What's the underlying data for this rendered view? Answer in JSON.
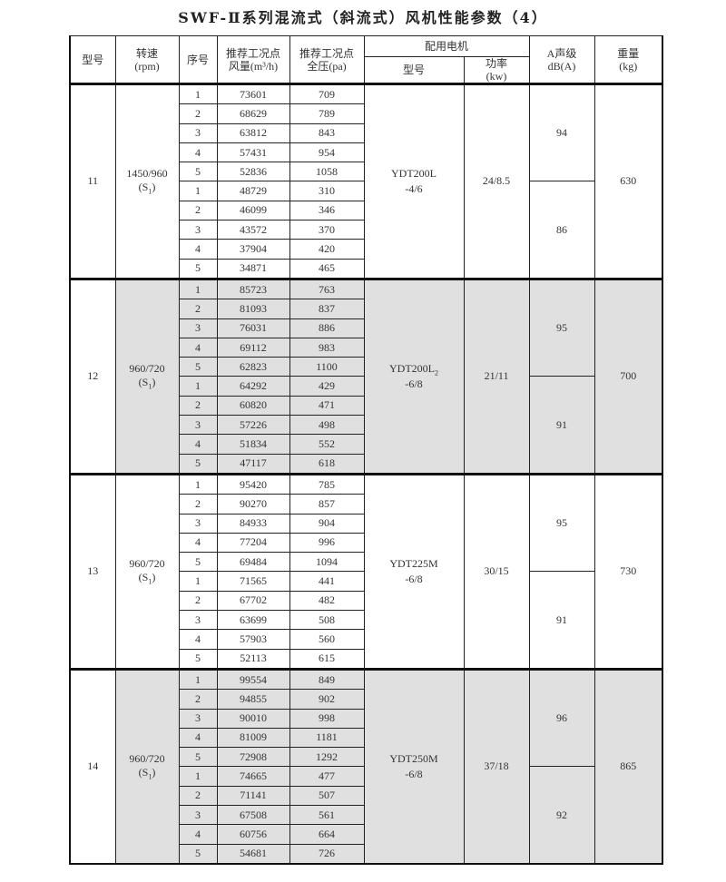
{
  "title": "SWF-Ⅱ系列混流式（斜流式）风机性能参数（4）",
  "headers": {
    "model": "型号",
    "speed": "转速",
    "speed_unit": "(rpm)",
    "seq": "序号",
    "flow": "推荐工况点",
    "flow_unit": "风量(m³/h)",
    "pressure": "推荐工况点",
    "pressure_unit": "全压(pa)",
    "motor": "配用电机",
    "motor_model": "型号",
    "power": "功率",
    "power_unit": "(kw)",
    "noise": "A声级",
    "noise_unit": "dB(A)",
    "weight": "重量",
    "weight_unit": "(kg)"
  },
  "shade_color": "#e0e0e0",
  "groups": [
    {
      "model": "11",
      "speed": "1450/960",
      "speed_sub": "(S",
      "speed_sub_idx": "1",
      "speed_close": ")",
      "shaded": false,
      "motor_model": "YDT200L",
      "motor_model_sub": "",
      "motor_suffix": "-4/6",
      "power": "24/8.5",
      "noise": [
        "94",
        "86"
      ],
      "weight": "630",
      "rows": [
        [
          "1",
          "73601",
          "709"
        ],
        [
          "2",
          "68629",
          "789"
        ],
        [
          "3",
          "63812",
          "843"
        ],
        [
          "4",
          "57431",
          "954"
        ],
        [
          "5",
          "52836",
          "1058"
        ],
        [
          "1",
          "48729",
          "310"
        ],
        [
          "2",
          "46099",
          "346"
        ],
        [
          "3",
          "43572",
          "370"
        ],
        [
          "4",
          "37904",
          "420"
        ],
        [
          "5",
          "34871",
          "465"
        ]
      ]
    },
    {
      "model": "12",
      "speed": "960/720",
      "speed_sub": "(S",
      "speed_sub_idx": "1",
      "speed_close": ")",
      "shaded": true,
      "motor_model": "YDT200L",
      "motor_model_sub": "2",
      "motor_suffix": "-6/8",
      "power": "21/11",
      "noise": [
        "95",
        "91"
      ],
      "weight": "700",
      "rows": [
        [
          "1",
          "85723",
          "763"
        ],
        [
          "2",
          "81093",
          "837"
        ],
        [
          "3",
          "76031",
          "886"
        ],
        [
          "4",
          "69112",
          "983"
        ],
        [
          "5",
          "62823",
          "1100"
        ],
        [
          "1",
          "64292",
          "429"
        ],
        [
          "2",
          "60820",
          "471"
        ],
        [
          "3",
          "57226",
          "498"
        ],
        [
          "4",
          "51834",
          "552"
        ],
        [
          "5",
          "47117",
          "618"
        ]
      ]
    },
    {
      "model": "13",
      "speed": "960/720",
      "speed_sub": "(S",
      "speed_sub_idx": "1",
      "speed_close": ")",
      "shaded": false,
      "motor_model": "YDT225M",
      "motor_model_sub": "",
      "motor_suffix": "-6/8",
      "power": "30/15",
      "noise": [
        "95",
        "91"
      ],
      "weight": "730",
      "rows": [
        [
          "1",
          "95420",
          "785"
        ],
        [
          "2",
          "90270",
          "857"
        ],
        [
          "3",
          "84933",
          "904"
        ],
        [
          "4",
          "77204",
          "996"
        ],
        [
          "5",
          "69484",
          "1094"
        ],
        [
          "1",
          "71565",
          "441"
        ],
        [
          "2",
          "67702",
          "482"
        ],
        [
          "3",
          "63699",
          "508"
        ],
        [
          "4",
          "57903",
          "560"
        ],
        [
          "5",
          "52113",
          "615"
        ]
      ]
    },
    {
      "model": "14",
      "speed": "960/720",
      "speed_sub": "(S",
      "speed_sub_idx": "1",
      "speed_close": ")",
      "shaded": true,
      "motor_model": "YDT250M",
      "motor_model_sub": "",
      "motor_suffix": "-6/8",
      "power": "37/18",
      "noise": [
        "96",
        "92"
      ],
      "weight": "865",
      "rows": [
        [
          "1",
          "99554",
          "849"
        ],
        [
          "2",
          "94855",
          "902"
        ],
        [
          "3",
          "90010",
          "998"
        ],
        [
          "4",
          "81009",
          "1181"
        ],
        [
          "5",
          "72908",
          "1292"
        ],
        [
          "1",
          "74665",
          "477"
        ],
        [
          "2",
          "71141",
          "507"
        ],
        [
          "3",
          "67508",
          "561"
        ],
        [
          "4",
          "60756",
          "664"
        ],
        [
          "5",
          "54681",
          "726"
        ]
      ]
    }
  ]
}
